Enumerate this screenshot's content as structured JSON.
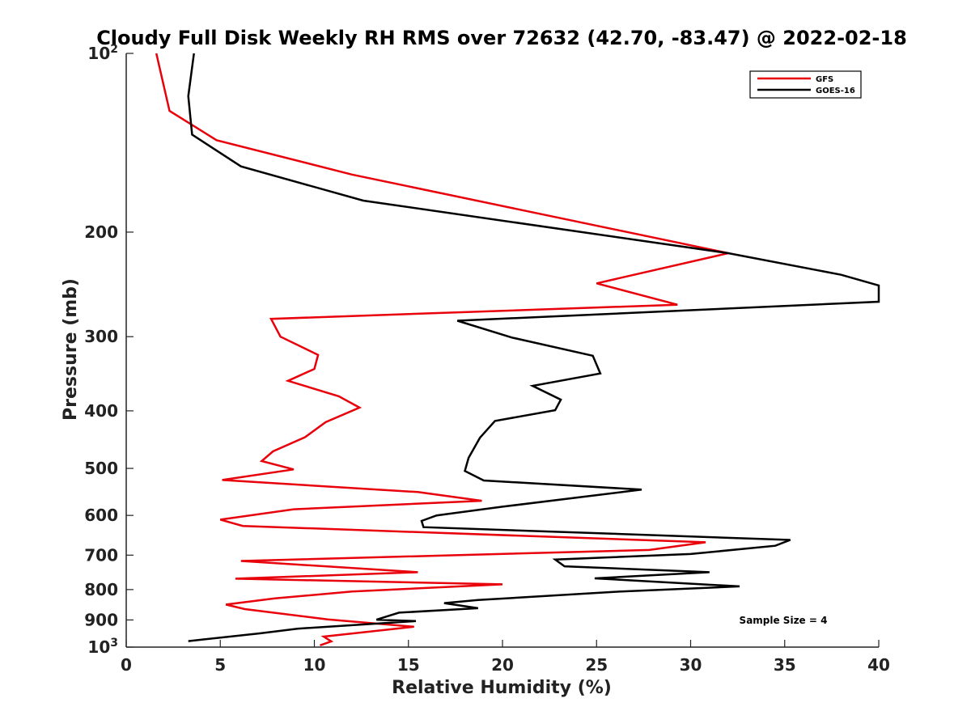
{
  "chart_data": {
    "type": "line",
    "title": "Cloudy Full Disk Weekly RH RMS over 72632 (42.70, -83.47) @ 2022-02-18",
    "xlabel": "Relative Humidity (%)",
    "ylabel": "Pressure (mb)",
    "xlim": [
      0,
      40
    ],
    "ylim": [
      100,
      1000
    ],
    "y_scale": "log",
    "y_reversed": true,
    "grid": false,
    "legend_position": "top-right",
    "x_ticks": [
      "0",
      "5",
      "10",
      "15",
      "20",
      "25",
      "30",
      "35",
      "40"
    ],
    "y_ticks": [
      {
        "value": 100,
        "base": "10",
        "exp": "2"
      },
      {
        "value": 200,
        "label": "200"
      },
      {
        "value": 300,
        "label": "300"
      },
      {
        "value": 400,
        "label": "400"
      },
      {
        "value": 500,
        "label": "500"
      },
      {
        "value": 600,
        "label": "600"
      },
      {
        "value": 700,
        "label": "700"
      },
      {
        "value": 800,
        "label": "800"
      },
      {
        "value": 900,
        "label": "900"
      },
      {
        "value": 1000,
        "base": "10",
        "exp": "3"
      }
    ],
    "annotation": "Sample Size = 4",
    "series": [
      {
        "name": "GFS",
        "color": "#e8000b",
        "points": [
          [
            1.6,
            100
          ],
          [
            2.3,
            125
          ],
          [
            4.8,
            140
          ],
          [
            12.0,
            160
          ],
          [
            32.0,
            217
          ],
          [
            25.0,
            244
          ],
          [
            29.3,
            265
          ],
          [
            7.7,
            280
          ],
          [
            8.2,
            300
          ],
          [
            10.2,
            322
          ],
          [
            10.0,
            340
          ],
          [
            8.6,
            356
          ],
          [
            11.3,
            378
          ],
          [
            12.4,
            395
          ],
          [
            10.6,
            418
          ],
          [
            9.5,
            443
          ],
          [
            7.8,
            468
          ],
          [
            7.2,
            486
          ],
          [
            8.9,
            502
          ],
          [
            5.1,
            523
          ],
          [
            15.5,
            548
          ],
          [
            18.9,
            567
          ],
          [
            8.9,
            586
          ],
          [
            5.0,
            610
          ],
          [
            6.2,
            625
          ],
          [
            30.8,
            666
          ],
          [
            27.8,
            686
          ],
          [
            6.1,
            716
          ],
          [
            15.5,
            748
          ],
          [
            5.8,
            767
          ],
          [
            20.0,
            784
          ],
          [
            12.0,
            806
          ],
          [
            7.9,
            828
          ],
          [
            5.3,
            848
          ],
          [
            6.3,
            863
          ],
          [
            10.7,
            898
          ],
          [
            15.3,
            924
          ],
          [
            10.5,
            960
          ],
          [
            10.9,
            978
          ],
          [
            10.3,
            993
          ]
        ]
      },
      {
        "name": "GOES-16",
        "color": "#000000",
        "points": [
          [
            3.6,
            100
          ],
          [
            3.3,
            118
          ],
          [
            3.5,
            137
          ],
          [
            6.1,
            155
          ],
          [
            12.6,
            177
          ],
          [
            32.0,
            217
          ],
          [
            38.0,
            236
          ],
          [
            40.0,
            246
          ],
          [
            40.0,
            262
          ],
          [
            17.6,
            282
          ],
          [
            20.5,
            301
          ],
          [
            24.8,
            323
          ],
          [
            25.2,
            346
          ],
          [
            21.6,
            363
          ],
          [
            23.1,
            383
          ],
          [
            22.8,
            399
          ],
          [
            19.6,
            416
          ],
          [
            18.8,
            444
          ],
          [
            18.2,
            480
          ],
          [
            18.0,
            505
          ],
          [
            19.0,
            524
          ],
          [
            27.4,
            543
          ],
          [
            20.0,
            580
          ],
          [
            16.5,
            600
          ],
          [
            15.7,
            613
          ],
          [
            15.8,
            628
          ],
          [
            35.3,
            660
          ],
          [
            34.5,
            675
          ],
          [
            30.0,
            697
          ],
          [
            22.8,
            712
          ],
          [
            23.3,
            731
          ],
          [
            31.0,
            748
          ],
          [
            24.9,
            766
          ],
          [
            32.6,
            790
          ],
          [
            26.0,
            807
          ],
          [
            18.7,
            833
          ],
          [
            16.9,
            843
          ],
          [
            18.7,
            860
          ],
          [
            14.5,
            875
          ],
          [
            13.3,
            899
          ],
          [
            15.4,
            904
          ],
          [
            9.1,
            931
          ],
          [
            7.1,
            948
          ],
          [
            3.3,
            977
          ]
        ]
      }
    ]
  }
}
